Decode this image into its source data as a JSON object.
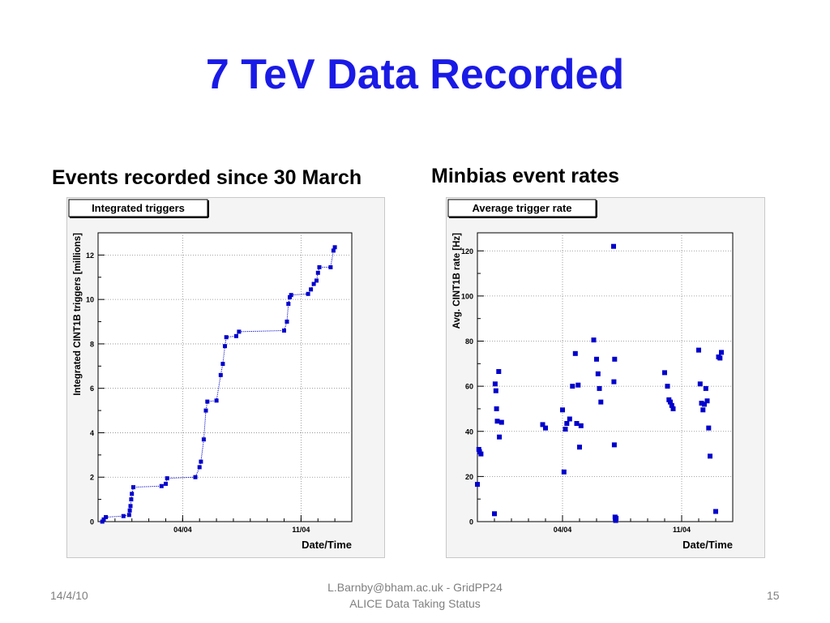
{
  "slide": {
    "title": "7 TeV Data Recorded",
    "left_heading": "Events recorded since 30 March",
    "right_heading": "Minbias event rates",
    "footer_date": "14/4/10",
    "footer_line1": "L.Barnby@bham.ac.uk - GridPP24",
    "footer_line2": "ALICE Data Taking Status",
    "page_number": "15"
  },
  "colors": {
    "title": "#1a1ae6",
    "series": "#0000cc",
    "grid": "#888888"
  },
  "chart_data": [
    {
      "type": "line",
      "title": "Integrated triggers",
      "xlabel": "Date/Time",
      "ylabel": "Integrated CINT1B triggers [millions]",
      "x_axis": "date",
      "x_range": [
        "2010-03-30",
        "2010-04-14"
      ],
      "xticks": [
        {
          "date": "2010-04-04",
          "label": "04/04"
        },
        {
          "date": "2010-04-11",
          "label": "11/04"
        }
      ],
      "ylim": [
        0,
        13
      ],
      "yticks": [
        0,
        2,
        4,
        6,
        8,
        10,
        12
      ],
      "grid": true,
      "points": [
        {
          "x": "2010-03-30T06:00",
          "y": 0.0
        },
        {
          "x": "2010-03-30T08:00",
          "y": 0.1
        },
        {
          "x": "2010-03-30T11:00",
          "y": 0.2
        },
        {
          "x": "2010-03-31T12:00",
          "y": 0.25
        },
        {
          "x": "2010-03-31T20:00",
          "y": 0.3
        },
        {
          "x": "2010-03-31T21:00",
          "y": 0.5
        },
        {
          "x": "2010-03-31T22:00",
          "y": 0.7
        },
        {
          "x": "2010-03-31T23:00",
          "y": 1.0
        },
        {
          "x": "2010-04-01T00:00",
          "y": 1.25
        },
        {
          "x": "2010-04-01T02:00",
          "y": 1.55
        },
        {
          "x": "2010-04-02T18:00",
          "y": 1.6
        },
        {
          "x": "2010-04-03T00:00",
          "y": 1.7
        },
        {
          "x": "2010-04-03T02:00",
          "y": 1.95
        },
        {
          "x": "2010-04-04T18:00",
          "y": 2.0
        },
        {
          "x": "2010-04-05T00:00",
          "y": 2.45
        },
        {
          "x": "2010-04-05T02:00",
          "y": 2.7
        },
        {
          "x": "2010-04-05T06:00",
          "y": 3.7
        },
        {
          "x": "2010-04-05T09:00",
          "y": 5.0
        },
        {
          "x": "2010-04-05T11:00",
          "y": 5.4
        },
        {
          "x": "2010-04-06T00:00",
          "y": 5.45
        },
        {
          "x": "2010-04-06T06:00",
          "y": 6.6
        },
        {
          "x": "2010-04-06T09:00",
          "y": 7.1
        },
        {
          "x": "2010-04-06T12:00",
          "y": 7.9
        },
        {
          "x": "2010-04-06T14:00",
          "y": 8.3
        },
        {
          "x": "2010-04-07T04:00",
          "y": 8.35
        },
        {
          "x": "2010-04-07T08:00",
          "y": 8.55
        },
        {
          "x": "2010-04-10T00:00",
          "y": 8.6
        },
        {
          "x": "2010-04-10T04:00",
          "y": 9.0
        },
        {
          "x": "2010-04-10T06:00",
          "y": 9.8
        },
        {
          "x": "2010-04-10T08:00",
          "y": 10.1
        },
        {
          "x": "2010-04-10T10:00",
          "y": 10.2
        },
        {
          "x": "2010-04-11T10:00",
          "y": 10.25
        },
        {
          "x": "2010-04-11T14:00",
          "y": 10.45
        },
        {
          "x": "2010-04-11T18:00",
          "y": 10.7
        },
        {
          "x": "2010-04-11T22:00",
          "y": 10.85
        },
        {
          "x": "2010-04-12T00:00",
          "y": 11.2
        },
        {
          "x": "2010-04-12T02:00",
          "y": 11.45
        },
        {
          "x": "2010-04-12T18:00",
          "y": 11.45
        },
        {
          "x": "2010-04-12T22:00",
          "y": 12.2
        },
        {
          "x": "2010-04-13T00:00",
          "y": 12.35
        }
      ]
    },
    {
      "type": "scatter",
      "title": "Average trigger rate",
      "xlabel": "Date/Time",
      "ylabel": "Avg. CINT1B rate [Hz]",
      "x_axis": "date",
      "x_range": [
        "2010-03-30",
        "2010-04-14"
      ],
      "xticks": [
        {
          "date": "2010-04-04",
          "label": "04/04"
        },
        {
          "date": "2010-04-11",
          "label": "11/04"
        }
      ],
      "ylim": [
        0,
        128
      ],
      "yticks": [
        0,
        20,
        40,
        60,
        80,
        100,
        120
      ],
      "grid": true,
      "points": [
        {
          "x": "2010-03-30T00:00",
          "y": 16.5
        },
        {
          "x": "2010-03-30T02:00",
          "y": 32
        },
        {
          "x": "2010-03-30T03:00",
          "y": 31
        },
        {
          "x": "2010-03-30T05:00",
          "y": 30
        },
        {
          "x": "2010-03-31T00:00",
          "y": 3.5
        },
        {
          "x": "2010-03-31T01:00",
          "y": 61
        },
        {
          "x": "2010-03-31T02:00",
          "y": 58
        },
        {
          "x": "2010-03-31T03:00",
          "y": 50
        },
        {
          "x": "2010-03-31T04:00",
          "y": 44.5
        },
        {
          "x": "2010-03-31T06:00",
          "y": 66.5
        },
        {
          "x": "2010-03-31T07:00",
          "y": 37.5
        },
        {
          "x": "2010-03-31T10:00",
          "y": 44
        },
        {
          "x": "2010-04-02T20:00",
          "y": 43
        },
        {
          "x": "2010-04-03T00:00",
          "y": 41.5
        },
        {
          "x": "2010-04-04T00:00",
          "y": 49.5
        },
        {
          "x": "2010-04-04T02:00",
          "y": 22
        },
        {
          "x": "2010-04-04T04:00",
          "y": 41
        },
        {
          "x": "2010-04-04T06:00",
          "y": 43.5
        },
        {
          "x": "2010-04-04T10:00",
          "y": 45.5
        },
        {
          "x": "2010-04-04T14:00",
          "y": 60
        },
        {
          "x": "2010-04-04T18:00",
          "y": 74.5
        },
        {
          "x": "2010-04-04T20:00",
          "y": 43.5
        },
        {
          "x": "2010-04-04T22:00",
          "y": 60.5
        },
        {
          "x": "2010-04-05T00:00",
          "y": 33
        },
        {
          "x": "2010-04-05T02:00",
          "y": 42.5
        },
        {
          "x": "2010-04-05T20:00",
          "y": 80.5
        },
        {
          "x": "2010-04-06T00:00",
          "y": 72
        },
        {
          "x": "2010-04-06T02:00",
          "y": 65.5
        },
        {
          "x": "2010-04-06T04:00",
          "y": 59
        },
        {
          "x": "2010-04-06T06:00",
          "y": 53
        },
        {
          "x": "2010-04-07T00:00",
          "y": 122
        },
        {
          "x": "2010-04-07T00:30",
          "y": 62
        },
        {
          "x": "2010-04-07T01:00",
          "y": 34
        },
        {
          "x": "2010-04-07T01:30",
          "y": 72
        },
        {
          "x": "2010-04-07T02:00",
          "y": 2
        },
        {
          "x": "2010-04-07T02:30",
          "y": 1
        },
        {
          "x": "2010-04-07T03:00",
          "y": 0.5
        },
        {
          "x": "2010-04-07T03:30",
          "y": 1.5
        },
        {
          "x": "2010-04-10T00:00",
          "y": 66
        },
        {
          "x": "2010-04-10T04:00",
          "y": 60
        },
        {
          "x": "2010-04-10T06:00",
          "y": 54
        },
        {
          "x": "2010-04-10T08:00",
          "y": 53
        },
        {
          "x": "2010-04-10T10:00",
          "y": 51.5
        },
        {
          "x": "2010-04-10T12:00",
          "y": 50
        },
        {
          "x": "2010-04-12T00:00",
          "y": 76
        },
        {
          "x": "2010-04-12T02:00",
          "y": 61
        },
        {
          "x": "2010-04-12T04:00",
          "y": 52.5
        },
        {
          "x": "2010-04-12T06:00",
          "y": 49.5
        },
        {
          "x": "2010-04-12T08:00",
          "y": 52
        },
        {
          "x": "2010-04-12T10:00",
          "y": 59
        },
        {
          "x": "2010-04-12T12:00",
          "y": 53.5
        },
        {
          "x": "2010-04-12T14:00",
          "y": 41.5
        },
        {
          "x": "2010-04-12T16:00",
          "y": 29
        },
        {
          "x": "2010-04-13T00:00",
          "y": 4.5
        },
        {
          "x": "2010-04-13T04:00",
          "y": 73
        },
        {
          "x": "2010-04-13T06:00",
          "y": 72.5
        },
        {
          "x": "2010-04-13T08:00",
          "y": 75
        }
      ]
    }
  ]
}
